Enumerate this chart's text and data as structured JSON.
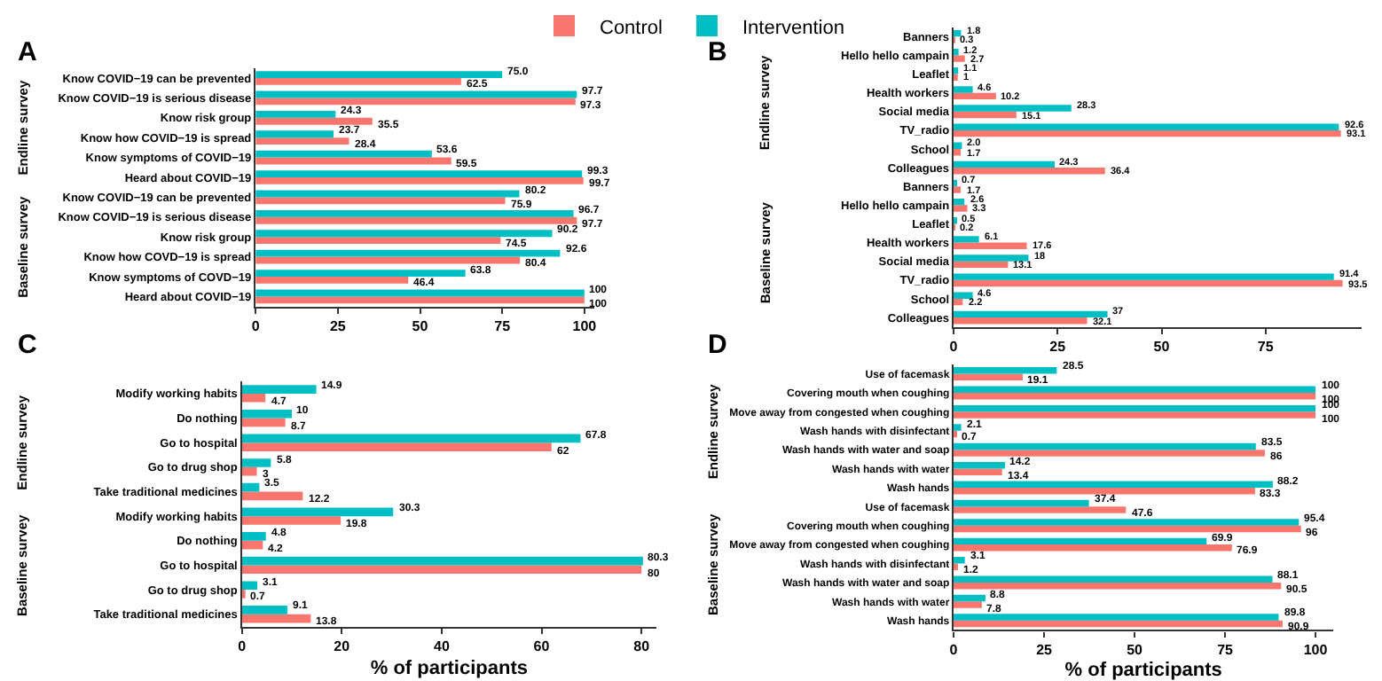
{
  "chart_data": [
    {
      "type": "bar",
      "orientation": "horizontal",
      "title": "A",
      "legend": "top",
      "data_labels": true,
      "grid": false,
      "xlim": [
        0,
        103
      ],
      "xticks": [
        0,
        25,
        50,
        75,
        100
      ],
      "annotations": [
        "Endline survey",
        "Baseline survey"
      ],
      "categories": [
        "Know COVID−19 can be prevented",
        "Know COVID−19 is serious disease",
        "Know risk group",
        "Know how COVID−19 is spread",
        "Know symptoms of COVID−19",
        "Heard about COVID−19",
        "Know COVID−19 can be prevented",
        "Know COVID−19 is serious disease",
        "Know risk group",
        "Know how COVD−19 is spread",
        "Know symptoms of COVD−19",
        "Heard about COVID−19"
      ],
      "series": [
        {
          "name": "Control",
          "color": "#f8766d",
          "values": [
            62.5,
            97.3,
            35.5,
            28.4,
            59.5,
            99.7,
            75.9,
            97.7,
            74.5,
            80.4,
            46.4,
            100
          ]
        },
        {
          "name": "Intervention",
          "color": "#00bfc4",
          "values": [
            75.0,
            97.7,
            24.3,
            23.7,
            53.6,
            99.3,
            80.2,
            96.7,
            90.2,
            92.6,
            63.8,
            100
          ],
          "value_labels": [
            "75.0",
            "97.7",
            "24.3",
            "23.7",
            "53.6",
            "99.3",
            "80.2",
            "96.7",
            "90.2",
            "92.6",
            "63.8",
            "100"
          ]
        }
      ]
    },
    {
      "type": "bar",
      "orientation": "horizontal",
      "title": "B",
      "data_labels": true,
      "grid": false,
      "xlim": [
        0,
        98
      ],
      "xticks": [
        0,
        25,
        50,
        75
      ],
      "annotations": [
        "Endline survey",
        "Baseline survey"
      ],
      "categories": [
        "Banners",
        "Hello hello campain",
        "Leaflet",
        "Health workers",
        "Social media",
        "TV_radio",
        "School",
        "Colleagues",
        "Banners",
        "Hello hello campain",
        "Leaflet",
        "Health workers",
        "Social media",
        "TV_radio",
        "School",
        "Colleagues"
      ],
      "series": [
        {
          "color": "#f8766d",
          "values": [
            0.3,
            2.7,
            1,
            10.2,
            15.1,
            93.1,
            1.7,
            36.4,
            1.7,
            3.3,
            0.2,
            17.6,
            13.1,
            93.5,
            2.2,
            32.1
          ]
        },
        {
          "color": "#00bfc4",
          "values": [
            1.8,
            1.2,
            1.1,
            4.6,
            28.3,
            92.6,
            2.0,
            24.3,
            0.7,
            2.6,
            0.5,
            6.1,
            18,
            91.4,
            4.6,
            37
          ],
          "value_labels": [
            "1.8",
            "1.2",
            "1.1",
            "4.6",
            "28.3",
            "92.6",
            "2.0",
            "24.3",
            "0.7",
            "2.6",
            "0.5",
            "6.1",
            "18",
            "91.4",
            "4.6",
            "37"
          ]
        }
      ]
    },
    {
      "type": "bar",
      "orientation": "horizontal",
      "title": "C",
      "xlabel": "% of participants",
      "data_labels": true,
      "grid": false,
      "xlim": [
        0,
        83
      ],
      "xticks": [
        0,
        20,
        40,
        60,
        80
      ],
      "annotations": [
        "Endline survey",
        "Baseline survey"
      ],
      "categories": [
        "Modify working habits",
        "Do nothing",
        "Go to hospital",
        "Go to drug shop",
        "Take traditional medicines",
        "Modify working habits",
        "Do nothing",
        "Go to hospital",
        "Go to drug shop",
        "Take traditional medicines"
      ],
      "series": [
        {
          "color": "#f8766d",
          "values": [
            4.7,
            8.7,
            62,
            3,
            12.2,
            19.8,
            4.2,
            80,
            0.7,
            13.8
          ]
        },
        {
          "color": "#00bfc4",
          "values": [
            14.9,
            10,
            67.8,
            5.8,
            3.5,
            30.3,
            4.8,
            80.3,
            3.1,
            9.1
          ]
        }
      ]
    },
    {
      "type": "bar",
      "orientation": "horizontal",
      "title": "D",
      "xlabel": "% of participants",
      "data_labels": true,
      "grid": false,
      "xlim": [
        0,
        105
      ],
      "xticks": [
        0,
        25,
        50,
        75,
        100
      ],
      "annotations": [
        "Endline survey",
        "Baseline survey"
      ],
      "categories": [
        "Use of facemask",
        "Covering mouth when coughing",
        "Move away from congested when coughing",
        "Wash hands with disinfectant",
        "Wash hands with water and soap",
        "Wash hands with water",
        "Wash hands",
        "Use of facemask",
        "Covering mouth when coughing",
        "Move away from congested when coughing",
        "Wash hands with disinfectant",
        "Wash hands with water and soap",
        "Wash hands with water",
        "Wash hands"
      ],
      "series": [
        {
          "color": "#f8766d",
          "values": [
            19.1,
            100,
            100,
            0.7,
            86,
            13.4,
            83.3,
            47.6,
            96,
            76.9,
            1.2,
            90.5,
            7.8,
            90.9
          ]
        },
        {
          "color": "#00bfc4",
          "values": [
            28.5,
            100,
            100,
            2.1,
            83.5,
            14.2,
            88.2,
            37.4,
            95.4,
            69.9,
            3.1,
            88.1,
            8.8,
            89.8
          ]
        }
      ]
    }
  ]
}
